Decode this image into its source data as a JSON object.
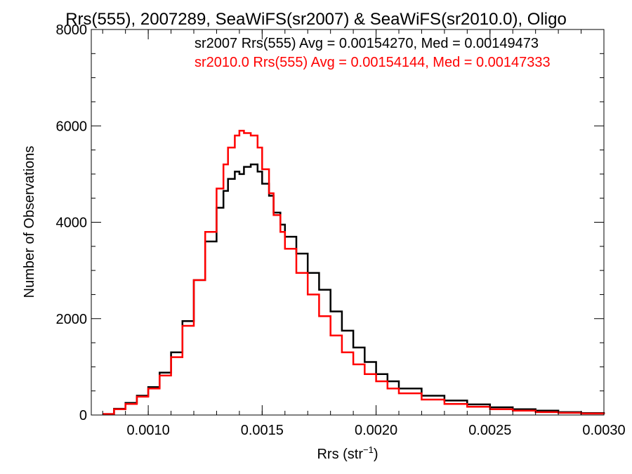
{
  "chart_data": {
    "type": "line",
    "title": "Rrs(555), 2007289, SeaWiFS(sr2007) & SeaWiFS(sr2010.0), Oligo",
    "xlabel": "Rrs (str",
    "xlabel_sup": "−1",
    "xlabel_close": ")",
    "ylabel": "Number of Observations",
    "xlim": [
      0.00075,
      0.003
    ],
    "ylim": [
      0,
      8000
    ],
    "x_ticks": [
      {
        "value": 0.001,
        "label": "0.0010"
      },
      {
        "value": 0.0015,
        "label": "0.0015"
      },
      {
        "value": 0.002,
        "label": "0.0020"
      },
      {
        "value": 0.0025,
        "label": "0.0025"
      },
      {
        "value": 0.003,
        "label": "0.0030"
      }
    ],
    "y_ticks": [
      {
        "value": 0,
        "label": "0"
      },
      {
        "value": 2000,
        "label": "2000"
      },
      {
        "value": 4000,
        "label": "4000"
      },
      {
        "value": 6000,
        "label": "6000"
      },
      {
        "value": 8000,
        "label": "8000"
      }
    ],
    "grid": false,
    "legend_position": "top-right",
    "annotations": [
      {
        "text": "sr2007 Rrs(555) Avg = 0.00154270, Med = 0.00149473",
        "color": "#000000"
      },
      {
        "text": "sr2010.0 Rrs(555) Avg = 0.00154144, Med = 0.00147333",
        "color": "#ff0000"
      }
    ],
    "series": [
      {
        "color": "#000000",
        "x": [
          0.0008,
          0.00085,
          0.0009,
          0.00095,
          0.001,
          0.00105,
          0.0011,
          0.00115,
          0.0012,
          0.00125,
          0.0013,
          0.00133,
          0.00135,
          0.00138,
          0.0014,
          0.00142,
          0.00145,
          0.00148,
          0.0015,
          0.00153,
          0.00155,
          0.00158,
          0.0016,
          0.00165,
          0.0017,
          0.00175,
          0.0018,
          0.00185,
          0.0019,
          0.00195,
          0.002,
          0.00205,
          0.0021,
          0.0022,
          0.0023,
          0.0024,
          0.0025,
          0.0026,
          0.0027,
          0.0028,
          0.0029,
          0.003
        ],
        "y": [
          20,
          130,
          250,
          400,
          580,
          880,
          1300,
          1950,
          2800,
          3600,
          4300,
          4650,
          4900,
          5050,
          5000,
          5150,
          5200,
          5050,
          4800,
          4550,
          4200,
          3950,
          3700,
          3350,
          2950,
          2600,
          2150,
          1750,
          1400,
          1100,
          850,
          700,
          550,
          400,
          300,
          220,
          160,
          120,
          90,
          60,
          40,
          20
        ]
      },
      {
        "color": "#ff0000",
        "x": [
          0.0008,
          0.00085,
          0.0009,
          0.00095,
          0.001,
          0.00105,
          0.0011,
          0.00115,
          0.0012,
          0.00125,
          0.0013,
          0.00133,
          0.00135,
          0.00138,
          0.0014,
          0.00142,
          0.00145,
          0.00148,
          0.0015,
          0.00153,
          0.00155,
          0.00158,
          0.0016,
          0.00165,
          0.0017,
          0.00175,
          0.0018,
          0.00185,
          0.0019,
          0.00195,
          0.002,
          0.00205,
          0.0021,
          0.0022,
          0.0023,
          0.0024,
          0.0025,
          0.0026,
          0.0027,
          0.0028,
          0.0029,
          0.003
        ],
        "y": [
          20,
          120,
          230,
          380,
          550,
          820,
          1200,
          1850,
          2800,
          3800,
          4700,
          5200,
          5550,
          5800,
          5900,
          5850,
          5800,
          5550,
          5100,
          4600,
          4150,
          3800,
          3450,
          2950,
          2500,
          2050,
          1650,
          1300,
          1050,
          850,
          700,
          550,
          450,
          320,
          230,
          170,
          120,
          90,
          60,
          45,
          30,
          15
        ]
      }
    ]
  }
}
